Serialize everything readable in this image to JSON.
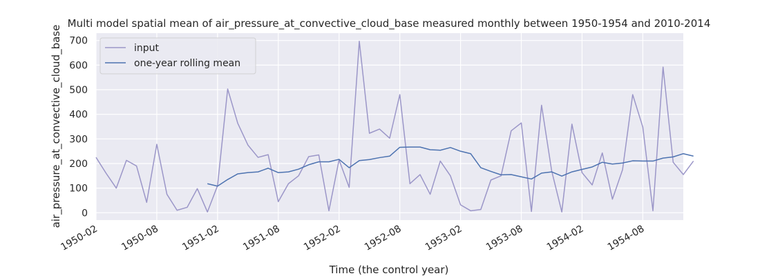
{
  "chart_data": {
    "type": "line",
    "title": "Multi model spatial mean of air_pressure_at_convective_cloud_base measured monthly between 1950-1954 and 2010-2014",
    "xlabel": "Time (the control year)",
    "ylabel": "air_pressure_at_convective_cloud_base",
    "x_start": "1950-02",
    "xlim": [
      "1950-02",
      "1954-12"
    ],
    "ylim": [
      -30,
      730
    ],
    "x_ticks": [
      "1950-02",
      "1950-08",
      "1951-02",
      "1951-08",
      "1952-02",
      "1952-08",
      "1953-02",
      "1953-08",
      "1954-02",
      "1954-08"
    ],
    "y_ticks": [
      0,
      100,
      200,
      300,
      400,
      500,
      600,
      700
    ],
    "grid": true,
    "legend_position": "top-left",
    "series": [
      {
        "name": "input",
        "color": "#9b96c8",
        "values": [
          225,
          160,
          100,
          213,
          190,
          42,
          278,
          75,
          10,
          22,
          98,
          3,
          110,
          503,
          363,
          275,
          225,
          236,
          45,
          118,
          150,
          228,
          235,
          8,
          215,
          103,
          697,
          323,
          340,
          303,
          480,
          118,
          155,
          75,
          210,
          150,
          32,
          8,
          13,
          133,
          150,
          333,
          365,
          5,
          437,
          170,
          3,
          360,
          163,
          113,
          243,
          55,
          175,
          480,
          348,
          8,
          592,
          205,
          155,
          210
        ]
      },
      {
        "name": "one-year rolling mean",
        "color": "#4c72b0",
        "start_index": 11,
        "values": [
          118,
          108,
          135,
          158,
          163,
          166,
          181,
          163,
          166,
          177,
          195,
          207,
          207,
          217,
          183,
          212,
          216,
          224,
          230,
          266,
          267,
          267,
          256,
          254,
          265,
          250,
          240,
          183,
          168,
          154,
          155,
          146,
          137,
          161,
          166,
          149,
          166,
          176,
          186,
          205,
          198,
          202,
          211,
          210,
          210,
          222,
          227,
          240,
          230
        ]
      }
    ]
  }
}
